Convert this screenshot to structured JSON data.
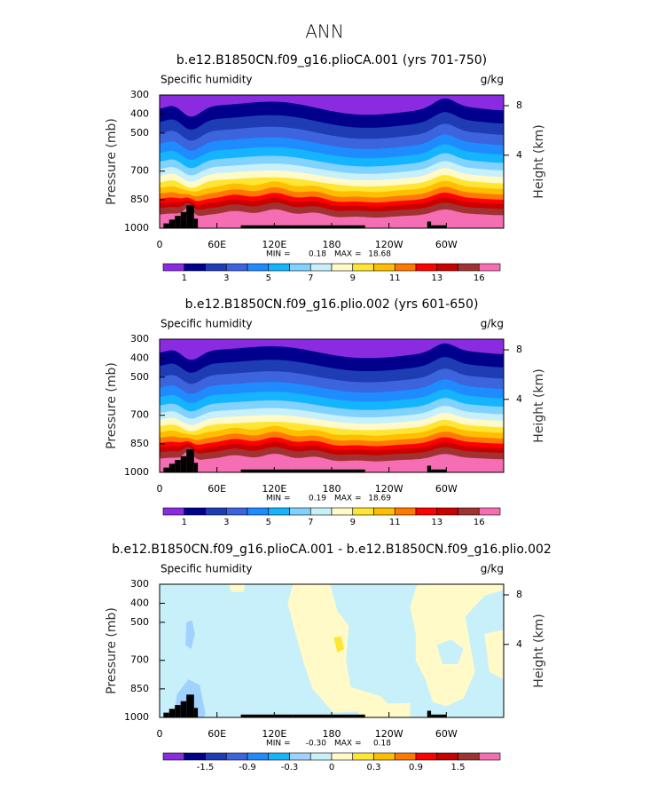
{
  "title": "ANN",
  "chart_data": [
    {
      "type": "contour",
      "title": "b.e12.B1850CN.f09_g16.plioCA.001 (yrs 701-750)",
      "field_label": "Specific humidity",
      "units": "g/kg",
      "ylabel": "Pressure (mb)",
      "y2label": "Height (km)",
      "xlim": [
        0,
        360
      ],
      "xticks": [
        0,
        {
          "value": 60,
          "label": "60E"
        },
        {
          "value": 120,
          "label": "120E"
        },
        180,
        {
          "value": 240,
          "label": "120W"
        },
        {
          "value": 300,
          "label": "60W"
        }
      ],
      "ylim": [
        1000,
        300
      ],
      "yticks": [
        300,
        400,
        500,
        700,
        850,
        1000
      ],
      "y2ticks": [
        4,
        8
      ],
      "min_text": "MIN =",
      "min": 0.18,
      "max_text": "MAX =",
      "max": 18.68,
      "colors": [
        "#8a2be2",
        "#00008c",
        "#1e3cb4",
        "#3c64dc",
        "#1e8cff",
        "#14b4ff",
        "#82d2ff",
        "#c8f0fa",
        "#fffac8",
        "#ffe632",
        "#ffbe00",
        "#ff7800",
        "#ff0000",
        "#c80000",
        "#a03232",
        "#f56eb4"
      ],
      "levels": [
        1,
        null,
        3,
        null,
        5,
        null,
        7,
        null,
        9,
        null,
        11,
        null,
        13,
        null,
        16
      ]
    },
    {
      "type": "contour",
      "title": "b.e12.B1850CN.f09_g16.plio.002 (yrs 601-650)",
      "field_label": "Specific humidity",
      "units": "g/kg",
      "ylabel": "Pressure (mb)",
      "y2label": "Height (km)",
      "xlim": [
        0,
        360
      ],
      "xticks": [
        0,
        {
          "value": 60,
          "label": "60E"
        },
        {
          "value": 120,
          "label": "120E"
        },
        180,
        {
          "value": 240,
          "label": "120W"
        },
        {
          "value": 300,
          "label": "60W"
        }
      ],
      "ylim": [
        1000,
        300
      ],
      "yticks": [
        300,
        400,
        500,
        700,
        850,
        1000
      ],
      "y2ticks": [
        4,
        8
      ],
      "min_text": "MIN =",
      "min": 0.19,
      "max_text": "MAX =",
      "max": 18.69,
      "colors": [
        "#8a2be2",
        "#00008c",
        "#1e3cb4",
        "#3c64dc",
        "#1e8cff",
        "#14b4ff",
        "#82d2ff",
        "#c8f0fa",
        "#fffac8",
        "#ffe632",
        "#ffbe00",
        "#ff7800",
        "#ff0000",
        "#c80000",
        "#a03232",
        "#f56eb4"
      ],
      "levels": [
        1,
        null,
        3,
        null,
        5,
        null,
        7,
        null,
        9,
        null,
        11,
        null,
        13,
        null,
        16
      ]
    },
    {
      "type": "contour-diff",
      "title": "b.e12.B1850CN.f09_g16.plioCA.001 - b.e12.B1850CN.f09_g16.plio.002",
      "field_label": "Specific humidity",
      "units": "g/kg",
      "ylabel": "Pressure (mb)",
      "y2label": "Height (km)",
      "xlim": [
        0,
        360
      ],
      "xticks": [
        0,
        {
          "value": 60,
          "label": "60E"
        },
        {
          "value": 120,
          "label": "120E"
        },
        180,
        {
          "value": 240,
          "label": "120W"
        },
        {
          "value": 300,
          "label": "60W"
        }
      ],
      "ylim": [
        1000,
        300
      ],
      "yticks": [
        300,
        400,
        500,
        700,
        850,
        1000
      ],
      "y2ticks": [
        4,
        8
      ],
      "min_text": "MIN =",
      "min": {
        "value": -0.3,
        "label": "-0.30"
      },
      "max_text": "MAX =",
      "max": 0.18,
      "colors": [
        "#8a2be2",
        "#00008c",
        "#1e3cb4",
        "#3c64dc",
        "#1e8cff",
        "#14b4ff",
        "#a0d2ff",
        "#c8f0fa",
        "#fffac8",
        "#ffe632",
        "#ffbe00",
        "#ff7800",
        "#ff0000",
        "#c80000",
        "#a03232",
        "#f56eb4"
      ],
      "levels": [
        null,
        -1.5,
        null,
        -0.9,
        null,
        -0.3,
        null,
        0,
        null,
        0.3,
        null,
        0.9,
        null,
        1.5,
        null
      ]
    }
  ]
}
